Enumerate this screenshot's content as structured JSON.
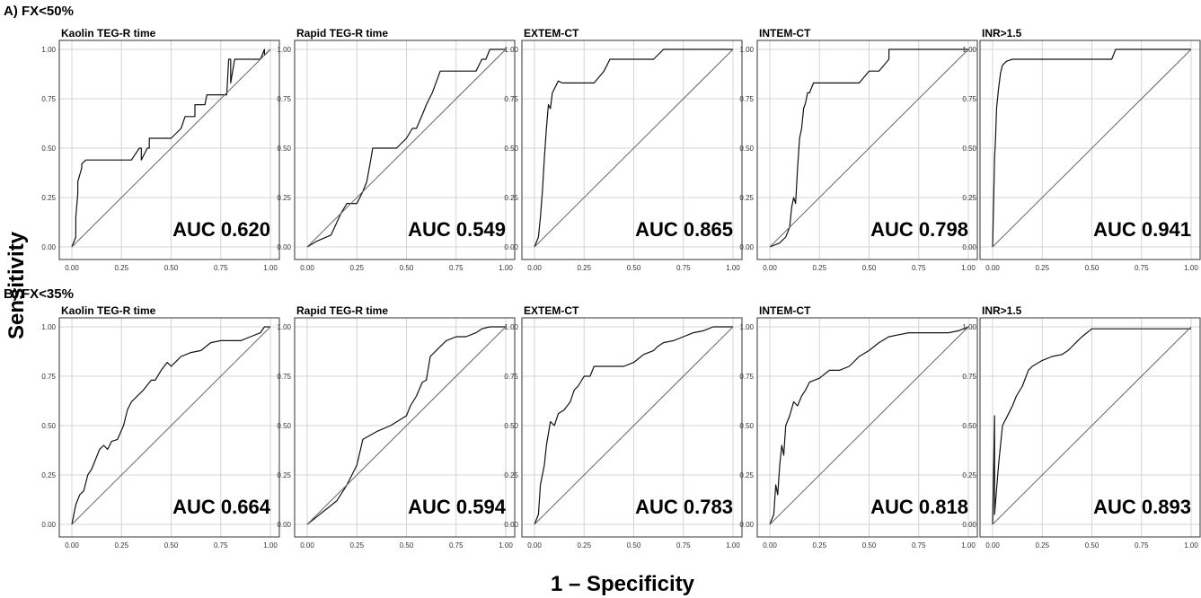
{
  "figure": {
    "ylabel": "Sensitivity",
    "xlabel": "1 – Specificity"
  },
  "chart_data": [
    {
      "type": "line",
      "group": "A) FX<50%",
      "title": "Kaolin TEG-R time",
      "annotation": "AUC  0.620",
      "xlim": [
        0,
        1
      ],
      "ylim": [
        0,
        1
      ],
      "xticks": [
        "0.00",
        "0.25",
        "0.50",
        "0.75",
        "1.00"
      ],
      "yticks": [
        "0.00",
        "0.25",
        "0.50",
        "0.75",
        "1.00"
      ],
      "series": [
        {
          "x": [
            0,
            0.02,
            0.02,
            0.03,
            0.03,
            0.05,
            0.05,
            0.07,
            0.07,
            0.12,
            0.3,
            0.34,
            0.35,
            0.35,
            0.38,
            0.39,
            0.39,
            0.42,
            0.44,
            0.5,
            0.55,
            0.57,
            0.6,
            0.62,
            0.62,
            0.65,
            0.67,
            0.68,
            0.7,
            0.72,
            0.75,
            0.78,
            0.79,
            0.8,
            0.8,
            0.82,
            0.9,
            0.95,
            0.97,
            0.97,
            1
          ],
          "y": [
            0,
            0.05,
            0.15,
            0.27,
            0.33,
            0.4,
            0.42,
            0.44,
            0.44,
            0.44,
            0.44,
            0.5,
            0.5,
            0.44,
            0.5,
            0.5,
            0.55,
            0.55,
            0.55,
            0.55,
            0.6,
            0.66,
            0.66,
            0.66,
            0.72,
            0.72,
            0.72,
            0.77,
            0.77,
            0.77,
            0.77,
            0.77,
            0.95,
            0.95,
            0.83,
            0.95,
            0.95,
            0.95,
            1,
            0.97,
            1
          ]
        },
        {
          "x": [
            0,
            1
          ],
          "y": [
            0,
            1
          ]
        }
      ]
    },
    {
      "type": "line",
      "group": "A) FX<50%",
      "title": "Rapid TEG-R time",
      "annotation": "AUC  0.549",
      "xlim": [
        0,
        1
      ],
      "ylim": [
        0,
        1
      ],
      "xticks": [
        "0.00",
        "0.25",
        "0.50",
        "0.75",
        "1.00"
      ],
      "yticks": [
        "0.00",
        "0.25",
        "0.50",
        "0.75",
        "1.00"
      ],
      "series": [
        {
          "x": [
            0,
            0.05,
            0.12,
            0.17,
            0.2,
            0.25,
            0.28,
            0.3,
            0.32,
            0.33,
            0.37,
            0.42,
            0.45,
            0.5,
            0.53,
            0.55,
            0.58,
            0.6,
            0.63,
            0.67,
            0.72,
            0.75,
            0.85,
            0.88,
            0.9,
            0.92,
            0.95,
            1
          ],
          "y": [
            0,
            0.03,
            0.06,
            0.17,
            0.22,
            0.22,
            0.28,
            0.33,
            0.44,
            0.5,
            0.5,
            0.5,
            0.5,
            0.55,
            0.6,
            0.6,
            0.67,
            0.72,
            0.78,
            0.89,
            0.89,
            0.89,
            0.89,
            0.95,
            0.95,
            1,
            1,
            1
          ]
        },
        {
          "x": [
            0,
            1
          ],
          "y": [
            0,
            1
          ]
        }
      ]
    },
    {
      "type": "line",
      "group": "A) FX<50%",
      "title": "EXTEM-CT",
      "annotation": "AUC  0.865",
      "xlim": [
        0,
        1
      ],
      "ylim": [
        0,
        1
      ],
      "xticks": [
        "0.00",
        "0.25",
        "0.50",
        "0.75",
        "1.00"
      ],
      "yticks": [
        "0.00",
        "0.25",
        "0.50",
        "0.75",
        "1.00"
      ],
      "series": [
        {
          "x": [
            0,
            0.02,
            0.03,
            0.04,
            0.05,
            0.06,
            0.07,
            0.08,
            0.09,
            0.1,
            0.12,
            0.14,
            0.15,
            0.2,
            0.25,
            0.3,
            0.35,
            0.35,
            0.38,
            0.4,
            0.6,
            0.65,
            0.7,
            0.8,
            1
          ],
          "y": [
            0,
            0.05,
            0.15,
            0.28,
            0.45,
            0.6,
            0.72,
            0.7,
            0.78,
            0.8,
            0.84,
            0.83,
            0.83,
            0.83,
            0.83,
            0.83,
            0.89,
            0.89,
            0.95,
            0.95,
            0.95,
            1,
            1,
            1,
            1
          ]
        },
        {
          "x": [
            0,
            1
          ],
          "y": [
            0,
            1
          ]
        }
      ]
    },
    {
      "type": "line",
      "group": "A) FX<50%",
      "title": "INTEM-CT",
      "annotation": "AUC  0.798",
      "xlim": [
        0,
        1
      ],
      "ylim": [
        0,
        1
      ],
      "xticks": [
        "0.00",
        "0.25",
        "0.50",
        "0.75",
        "1.00"
      ],
      "yticks": [
        "0.00",
        "0.25",
        "0.50",
        "0.75",
        "1.00"
      ],
      "series": [
        {
          "x": [
            0,
            0.05,
            0.08,
            0.1,
            0.11,
            0.12,
            0.13,
            0.14,
            0.15,
            0.16,
            0.17,
            0.18,
            0.19,
            0.2,
            0.22,
            0.25,
            0.35,
            0.45,
            0.5,
            0.55,
            0.6,
            0.6,
            0.62,
            0.7,
            1
          ],
          "y": [
            0,
            0.02,
            0.05,
            0.1,
            0.2,
            0.25,
            0.22,
            0.4,
            0.55,
            0.6,
            0.7,
            0.73,
            0.78,
            0.78,
            0.83,
            0.83,
            0.83,
            0.83,
            0.89,
            0.89,
            0.95,
            1,
            1,
            1,
            1
          ]
        },
        {
          "x": [
            0,
            1
          ],
          "y": [
            0,
            1
          ]
        }
      ]
    },
    {
      "type": "line",
      "group": "A) FX<50%",
      "title": "INR>1.5",
      "annotation": "AUC  0.941",
      "xlim": [
        0,
        1
      ],
      "ylim": [
        0,
        1
      ],
      "xticks": [
        "0.00",
        "0.25",
        "0.50",
        "0.75",
        "1.00"
      ],
      "yticks": [
        "0.00",
        "0.25",
        "0.50",
        "0.75",
        "1.00"
      ],
      "series": [
        {
          "x": [
            0,
            0.005,
            0.01,
            0.015,
            0.02,
            0.03,
            0.04,
            0.05,
            0.07,
            0.1,
            0.15,
            0.3,
            0.5,
            0.6,
            0.62,
            0.8,
            1
          ],
          "y": [
            0,
            0.22,
            0.45,
            0.55,
            0.7,
            0.8,
            0.88,
            0.92,
            0.94,
            0.95,
            0.95,
            0.95,
            0.95,
            0.95,
            1,
            1,
            1
          ]
        },
        {
          "x": [
            0,
            1
          ],
          "y": [
            0,
            1
          ]
        }
      ]
    },
    {
      "type": "line",
      "group": "B) FX<35%",
      "title": "Kaolin TEG-R time",
      "annotation": "AUC  0.664",
      "xlim": [
        0,
        1
      ],
      "ylim": [
        0,
        1
      ],
      "xticks": [
        "0.00",
        "0.25",
        "0.50",
        "0.75",
        "1.00"
      ],
      "yticks": [
        "0.00",
        "0.25",
        "0.50",
        "0.75",
        "1.00"
      ],
      "series": [
        {
          "x": [
            0,
            0.02,
            0.04,
            0.06,
            0.08,
            0.1,
            0.12,
            0.14,
            0.16,
            0.18,
            0.2,
            0.23,
            0.26,
            0.28,
            0.3,
            0.33,
            0.36,
            0.4,
            0.42,
            0.45,
            0.48,
            0.5,
            0.53,
            0.55,
            0.6,
            0.65,
            0.7,
            0.75,
            0.8,
            0.85,
            0.9,
            0.95,
            0.97,
            1
          ],
          "y": [
            0,
            0.1,
            0.15,
            0.17,
            0.25,
            0.28,
            0.33,
            0.38,
            0.4,
            0.38,
            0.42,
            0.43,
            0.5,
            0.58,
            0.62,
            0.65,
            0.68,
            0.73,
            0.73,
            0.78,
            0.82,
            0.8,
            0.83,
            0.85,
            0.87,
            0.88,
            0.92,
            0.93,
            0.93,
            0.93,
            0.95,
            0.97,
            1,
            1
          ]
        },
        {
          "x": [
            0,
            1
          ],
          "y": [
            0,
            1
          ]
        }
      ]
    },
    {
      "type": "line",
      "group": "B) FX<35%",
      "title": "Rapid TEG-R time",
      "annotation": "AUC  0.594",
      "xlim": [
        0,
        1
      ],
      "ylim": [
        0,
        1
      ],
      "xticks": [
        "0.00",
        "0.25",
        "0.50",
        "0.75",
        "1.00"
      ],
      "yticks": [
        "0.00",
        "0.25",
        "0.50",
        "0.75",
        "1.00"
      ],
      "series": [
        {
          "x": [
            0,
            0.05,
            0.1,
            0.15,
            0.2,
            0.25,
            0.28,
            0.35,
            0.42,
            0.5,
            0.52,
            0.55,
            0.58,
            0.6,
            0.62,
            0.65,
            0.7,
            0.75,
            0.8,
            0.85,
            0.88,
            0.92,
            1
          ],
          "y": [
            0,
            0.04,
            0.08,
            0.12,
            0.2,
            0.3,
            0.43,
            0.47,
            0.5,
            0.55,
            0.6,
            0.65,
            0.72,
            0.73,
            0.85,
            0.88,
            0.93,
            0.95,
            0.95,
            0.97,
            0.99,
            1,
            1
          ]
        },
        {
          "x": [
            0,
            1
          ],
          "y": [
            0,
            1
          ]
        }
      ]
    },
    {
      "type": "line",
      "group": "B) FX<35%",
      "title": "EXTEM-CT",
      "annotation": "AUC  0.783",
      "xlim": [
        0,
        1
      ],
      "ylim": [
        0,
        1
      ],
      "xticks": [
        "0.00",
        "0.25",
        "0.50",
        "0.75",
        "1.00"
      ],
      "yticks": [
        "0.00",
        "0.25",
        "0.50",
        "0.75",
        "1.00"
      ],
      "series": [
        {
          "x": [
            0,
            0.02,
            0.03,
            0.05,
            0.06,
            0.08,
            0.1,
            0.12,
            0.15,
            0.18,
            0.2,
            0.22,
            0.25,
            0.28,
            0.3,
            0.35,
            0.4,
            0.45,
            0.5,
            0.55,
            0.6,
            0.62,
            0.65,
            0.7,
            0.75,
            0.8,
            0.85,
            0.9,
            1
          ],
          "y": [
            0,
            0.05,
            0.2,
            0.3,
            0.4,
            0.52,
            0.5,
            0.56,
            0.58,
            0.62,
            0.68,
            0.7,
            0.75,
            0.75,
            0.8,
            0.8,
            0.8,
            0.8,
            0.82,
            0.86,
            0.88,
            0.9,
            0.92,
            0.93,
            0.95,
            0.97,
            0.98,
            1,
            1
          ]
        },
        {
          "x": [
            0,
            1
          ],
          "y": [
            0,
            1
          ]
        }
      ]
    },
    {
      "type": "line",
      "group": "B) FX<35%",
      "title": "INTEM-CT",
      "annotation": "AUC  0.818",
      "xlim": [
        0,
        1
      ],
      "ylim": [
        0,
        1
      ],
      "xticks": [
        "0.00",
        "0.25",
        "0.50",
        "0.75",
        "1.00"
      ],
      "yticks": [
        "0.00",
        "0.25",
        "0.50",
        "0.75",
        "1.00"
      ],
      "series": [
        {
          "x": [
            0,
            0.02,
            0.03,
            0.04,
            0.05,
            0.06,
            0.07,
            0.08,
            0.1,
            0.12,
            0.14,
            0.16,
            0.18,
            0.2,
            0.25,
            0.3,
            0.35,
            0.4,
            0.45,
            0.5,
            0.55,
            0.6,
            0.65,
            0.7,
            0.8,
            0.9,
            0.95,
            1
          ],
          "y": [
            0,
            0.05,
            0.2,
            0.15,
            0.3,
            0.4,
            0.35,
            0.5,
            0.55,
            0.62,
            0.6,
            0.65,
            0.68,
            0.72,
            0.74,
            0.78,
            0.78,
            0.8,
            0.85,
            0.88,
            0.92,
            0.95,
            0.96,
            0.97,
            0.97,
            0.97,
            0.98,
            1
          ]
        },
        {
          "x": [
            0,
            1
          ],
          "y": [
            0,
            1
          ]
        }
      ]
    },
    {
      "type": "line",
      "group": "B) FX<35%",
      "title": "INR>1.5",
      "annotation": "AUC  0.893",
      "xlim": [
        0,
        1
      ],
      "ylim": [
        0,
        1
      ],
      "xticks": [
        "0.00",
        "0.25",
        "0.50",
        "0.75",
        "1.00"
      ],
      "yticks": [
        "0.00",
        "0.25",
        "0.50",
        "0.75",
        "1.00"
      ],
      "series": [
        {
          "x": [
            0,
            0.01,
            0.01,
            0.03,
            0.05,
            0.08,
            0.1,
            0.12,
            0.15,
            0.18,
            0.2,
            0.25,
            0.3,
            0.35,
            0.38,
            0.4,
            0.42,
            0.45,
            0.5,
            0.6,
            1
          ],
          "y": [
            0,
            0.55,
            0.05,
            0.3,
            0.5,
            0.56,
            0.6,
            0.65,
            0.7,
            0.78,
            0.8,
            0.83,
            0.85,
            0.86,
            0.88,
            0.9,
            0.92,
            0.95,
            0.99,
            0.99,
            0.99
          ]
        },
        {
          "x": [
            0,
            1
          ],
          "y": [
            0,
            1
          ]
        }
      ]
    }
  ]
}
